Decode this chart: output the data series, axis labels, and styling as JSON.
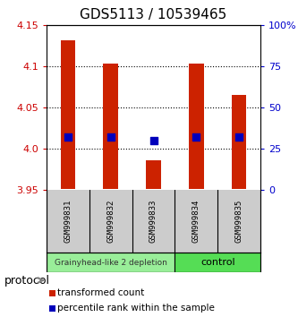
{
  "title": "GDS5113 / 10539465",
  "samples": [
    "GSM999831",
    "GSM999832",
    "GSM999833",
    "GSM999834",
    "GSM999835"
  ],
  "bar_bottoms": [
    3.951,
    3.951,
    3.951,
    3.951,
    3.951
  ],
  "bar_tops": [
    4.132,
    4.103,
    3.986,
    4.103,
    4.065
  ],
  "blue_dots": [
    4.014,
    4.014,
    4.01,
    4.014,
    4.014
  ],
  "ylim_left": [
    3.95,
    4.15
  ],
  "ylim_right": [
    0,
    100
  ],
  "left_ticks": [
    3.95,
    4.0,
    4.05,
    4.1,
    4.15
  ],
  "right_ticks": [
    0,
    25,
    50,
    75,
    100
  ],
  "right_tick_labels": [
    "0",
    "25",
    "50",
    "75",
    "100%"
  ],
  "group1_count": 3,
  "group2_count": 2,
  "group1_label": "Grainyhead-like 2 depletion",
  "group2_label": "control",
  "group1_color": "#99ee99",
  "group2_color": "#55dd55",
  "bar_color": "#cc2200",
  "dot_color": "#0000bb",
  "protocol_label": "protocol",
  "legend1": "transformed count",
  "legend2": "percentile rank within the sample",
  "bg_color": "#ffffff",
  "title_fontsize": 11,
  "tick_fontsize": 8,
  "tick_label_color_left": "#cc0000",
  "tick_label_color_right": "#0000cc",
  "sample_label_color": "#000000",
  "sample_bg_color": "#cccccc",
  "bar_width": 0.35,
  "dot_size": 30,
  "gridline_ticks": [
    4.0,
    4.05,
    4.1
  ]
}
